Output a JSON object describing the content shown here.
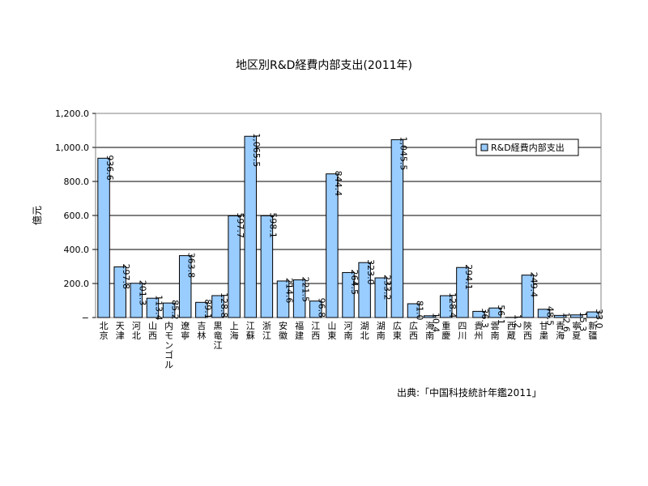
{
  "chart_data": {
    "type": "bar",
    "title": "地区別R&D経費内部支出(2011年)",
    "ylabel": "億元",
    "xlabel": "",
    "ylim": [
      0,
      1200
    ],
    "yticks": [
      "−",
      "200.0",
      "400.0",
      "600.0",
      "800.0",
      "1,000.0",
      "1,200.0"
    ],
    "grid": true,
    "legend_position": "top-right",
    "series": [
      {
        "name": "R&D経費内部支出",
        "color": "#99ccff",
        "values": [
          936.6,
          297.8,
          201.3,
          113.4,
          85.2,
          363.8,
          89.1,
          128.8,
          597.7,
          1065.5,
          598.1,
          214.6,
          221.5,
          96.8,
          844.4,
          264.5,
          323.0,
          233.2,
          1045.5,
          81.0,
          10.4,
          128.4,
          294.1,
          36.3,
          56.1,
          1.2,
          249.4,
          48.5,
          12.6,
          15.3,
          33.0
        ],
        "labels": [
          "936.6",
          "297.8",
          "201.3",
          "113.4",
          "85.2",
          "363.8",
          "89.1",
          "128.8",
          "597.7",
          "1,065.5",
          "598.1",
          "214.6",
          "221.5",
          "96.8",
          "844.4",
          "264.5",
          "323.0",
          "233.2",
          "1,045.5",
          "81.0",
          "10.4",
          "128.4",
          "294.1",
          "36.3",
          "56.1",
          "1.2",
          "249.4",
          "48.5",
          "12.6",
          "15.3",
          "33.0"
        ]
      }
    ],
    "categories": [
      "北京",
      "天津",
      "河北",
      "山西",
      "内モンゴル",
      "遼寧",
      "吉林",
      "黒竜江",
      "上海",
      "江蘇",
      "浙江",
      "安徽",
      "福建",
      "江西",
      "山東",
      "河南",
      "湖北",
      "湖南",
      "広東",
      "広西",
      "海南",
      "重慶",
      "四川",
      "貴州",
      "雲南",
      "西蔵",
      "陝西",
      "甘粛",
      "青海",
      "寧夏",
      "新疆"
    ]
  },
  "source": "出典:「中国科技統計年鑑2011」"
}
